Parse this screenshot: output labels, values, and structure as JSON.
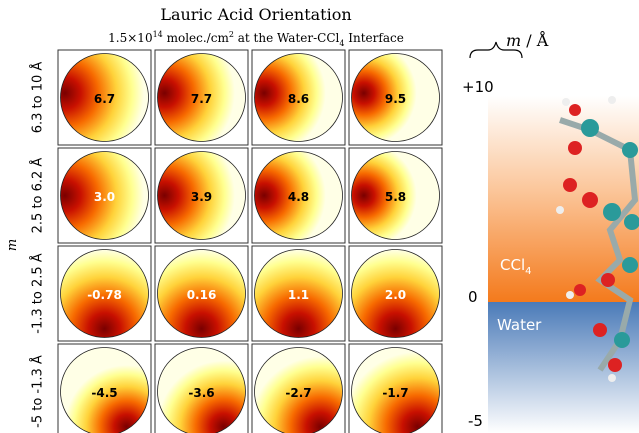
{
  "figure": {
    "title": "Lauric Acid Orientation",
    "subtitle": [
      "1.5×10",
      "14",
      " molec./cm",
      "2",
      " at the Water-CCl",
      "4",
      " Interface"
    ],
    "y_axis_label": "m",
    "rows": [
      {
        "label": "6.3 to 10 Å",
        "cells": [
          "6.7",
          "7.7",
          "8.6",
          "9.5"
        ]
      },
      {
        "label": "2.5 to 6.2 Å",
        "cells": [
          "3.0",
          "3.9",
          "4.8",
          "5.8"
        ]
      },
      {
        "label": "-1.3 to 2.5 Å",
        "cells": [
          "-0.78",
          "0.16",
          "1.1",
          "2.0"
        ]
      },
      {
        "label": "-5 to -1.3 Å",
        "cells": [
          "-4.5",
          "-3.6",
          "-2.7",
          "-1.7"
        ]
      }
    ],
    "scale": {
      "unit": [
        "m",
        " / Å"
      ],
      "top": "+10",
      "middle": "0",
      "bottom": "-5"
    },
    "regions": {
      "upper": [
        "CCl",
        "4"
      ],
      "lower": "Water"
    }
  }
}
